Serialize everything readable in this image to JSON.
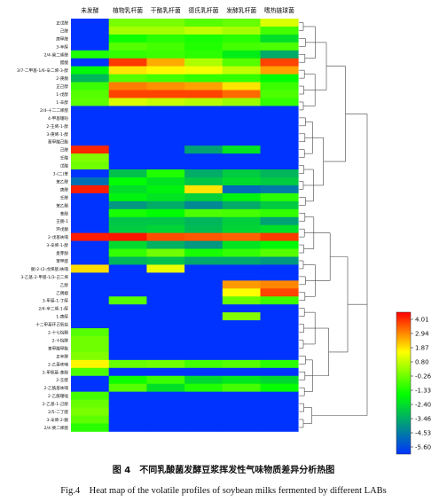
{
  "chart_data": {
    "type": "heatmap",
    "columns": [
      "未发酵",
      "植物乳杆菌",
      "干酪乳杆菌",
      "德氏乳杆菌",
      "发酵乳杆菌",
      "嗜热链球菌"
    ],
    "rows": [
      "正戊醛",
      "己醛",
      "庚甲醛",
      "3-辛醇",
      "2/4-癸二烯醛",
      "醋酸",
      "3/7-二甲基-1/6-辛二烯-3-醇",
      "2-庚酮",
      "正己醇",
      "1-戊醇",
      "1-辛醇",
      "2/4-十二二烯醛",
      "4-甲基噻吩",
      "2-壬烯-1-醇",
      "3-庚烯-1-醇",
      "葵甲酸己酯",
      "己醛",
      "壬酸",
      "戊酸",
      "3-(二)苯",
      "苯乙醛",
      "庚醛",
      "壬醛",
      "苯乙酮",
      "苯酚",
      "壬酮-1",
      "环戊酮",
      "2-戊基呋喃",
      "3-辛烯-1-醇",
      "麦芽酚",
      "苯甲醛",
      "酮-2-(2-戊烯基)呋喃",
      "3-乙基-2-甲基-1/3-己二烯",
      "乙醇",
      "乙偶姻",
      "3-甲基-1-丁醇",
      "2/4-辛二烯-1-醇",
      "1-庚醇",
      "十二甲基环己氧烷",
      "2-十七烷酮",
      "2-十烷醛",
      "苯甲酸甲酯",
      "正辛醛",
      "2-乙基呋喃",
      "2-甲氧基-苯酚",
      "2-壬醛",
      "2-乙酰基呋喃",
      "2-乙酰噻唑",
      "2-乙基-1-己醇",
      "2/5-二丁醛",
      "3-辛烯-2-酮",
      "2/4-癸二烯醛"
    ],
    "values": [
      [
        -5.6,
        -0.2,
        -0.2,
        -0.6,
        -0.4,
        0.9
      ],
      [
        -5.6,
        0.3,
        0.3,
        0.6,
        0.3,
        -0.8
      ],
      [
        -5.6,
        -1.4,
        -1.1,
        -1.3,
        -1.1,
        -2.2
      ],
      [
        -5.6,
        -0.6,
        -0.8,
        -1.2,
        -0.8,
        -0.7
      ],
      [
        -1.2,
        -1.0,
        -0.9,
        -1.1,
        -1.9,
        -3.2
      ],
      [
        -5.6,
        3.4,
        2.2,
        0.4,
        -0.6,
        3.3
      ],
      [
        -1.7,
        1.6,
        1.4,
        1.2,
        0.6,
        2.3
      ],
      [
        -3.0,
        -0.6,
        -0.8,
        -1.0,
        -1.0,
        -1.6
      ],
      [
        -0.9,
        2.7,
        2.5,
        2.3,
        1.6,
        -0.9
      ],
      [
        -0.6,
        3.3,
        3.3,
        3.3,
        2.9,
        -0.7
      ],
      [
        -0.5,
        0.9,
        0.7,
        0.5,
        0.2,
        -1.0
      ],
      [
        -5.6,
        -5.6,
        -5.6,
        -5.6,
        -5.6,
        -5.6
      ],
      [
        -5.6,
        -5.6,
        -5.6,
        -5.6,
        -5.6,
        -5.6
      ],
      [
        -5.6,
        -5.6,
        -5.6,
        -5.6,
        -5.6,
        -5.6
      ],
      [
        -5.6,
        -5.6,
        -5.6,
        -5.6,
        -5.6,
        -5.6
      ],
      [
        -5.6,
        -5.6,
        -5.6,
        -5.6,
        -5.6,
        -5.6
      ],
      [
        3.6,
        -5.6,
        -5.6,
        -3.4,
        -2.1,
        -5.6
      ],
      [
        -0.1,
        -5.6,
        -5.6,
        -5.6,
        -5.6,
        -5.6
      ],
      [
        -0.3,
        -5.6,
        -5.6,
        -5.6,
        -5.6,
        -5.6
      ],
      [
        -5.6,
        -2.8,
        -1.2,
        -3.2,
        -2.6,
        -3.0
      ],
      [
        -4.4,
        -1.6,
        -2.1,
        -2.7,
        -2.3,
        -2.6
      ],
      [
        3.7,
        -2.2,
        -1.8,
        1.6,
        -4.5,
        -4.2
      ],
      [
        -5.6,
        -1.8,
        -2.1,
        -2.5,
        -1.8,
        -1.1
      ],
      [
        -5.6,
        -3.6,
        -3.2,
        -3.9,
        -3.2,
        -2.6
      ],
      [
        -5.6,
        -1.3,
        -1.6,
        -0.7,
        -0.8,
        -1.0
      ],
      [
        -5.6,
        -2.7,
        -2.7,
        -3.0,
        -2.5,
        -3.4
      ],
      [
        -5.6,
        -2.6,
        -2.4,
        -2.9,
        -2.4,
        -2.2
      ],
      [
        3.7,
        3.8,
        3.2,
        3.1,
        3.0,
        3.4
      ],
      [
        -5.6,
        -2.3,
        -3.1,
        -3.6,
        -2.1,
        -1.7
      ],
      [
        -5.6,
        -1.0,
        -0.3,
        -1.3,
        -1.0,
        -0.6
      ],
      [
        -5.6,
        -3.0,
        -2.8,
        -3.3,
        -3.3,
        -3.6
      ],
      [
        1.7,
        -5.6,
        1.1,
        -5.6,
        -5.6,
        -5.6
      ],
      [
        -5.6,
        -5.6,
        -5.6,
        -5.6,
        -5.6,
        -5.6
      ],
      [
        -5.6,
        -5.6,
        -5.6,
        -5.6,
        2.4,
        2.6
      ],
      [
        -5.6,
        -5.6,
        -5.6,
        -5.6,
        1.3,
        3.3
      ],
      [
        -5.6,
        -0.6,
        -5.6,
        -5.6,
        -0.4,
        -0.9
      ],
      [
        -5.6,
        -5.6,
        -5.6,
        -5.6,
        -5.6,
        -5.6
      ],
      [
        -5.6,
        -5.6,
        -5.6,
        -5.6,
        -0.1,
        -5.6
      ],
      [
        -5.6,
        -5.6,
        -5.6,
        -5.6,
        -5.6,
        -5.6
      ],
      [
        -0.6,
        -5.6,
        -5.6,
        -5.6,
        -5.6,
        -5.6
      ],
      [
        -0.3,
        -5.6,
        -5.6,
        -5.6,
        -5.6,
        -5.6
      ],
      [
        -0.3,
        -5.6,
        -5.6,
        -5.6,
        -5.6,
        -5.6
      ],
      [
        -0.1,
        -5.6,
        -5.6,
        -5.6,
        -5.6,
        -5.6
      ],
      [
        1.4,
        -0.4,
        -0.3,
        -0.8,
        -0.6,
        -1.1
      ],
      [
        -0.7,
        -5.6,
        -5.6,
        -5.6,
        -5.6,
        -5.6
      ],
      [
        -5.6,
        -1.4,
        -0.9,
        -2.3,
        -2.0,
        -2.3
      ],
      [
        -5.6,
        -0.6,
        -2.2,
        -1.2,
        -0.8,
        -1.5
      ],
      [
        -0.8,
        -5.6,
        -5.6,
        -5.6,
        -5.6,
        -5.6
      ],
      [
        -0.4,
        -5.6,
        -5.6,
        -5.6,
        -5.6,
        -5.6
      ],
      [
        -0.2,
        -5.6,
        -5.6,
        -5.6,
        -5.6,
        -5.6
      ],
      [
        -0.5,
        -5.6,
        -5.6,
        -5.6,
        -5.6,
        -5.6
      ],
      [
        -1.1,
        -5.6,
        -5.6,
        -5.6,
        -5.6,
        -5.6
      ]
    ],
    "legend_ticks": [
      "4.01",
      "2.94",
      "1.87",
      "0.80",
      "-0.26",
      "-1.33",
      "-2.40",
      "-3.46",
      "-4.53",
      "-5.60"
    ],
    "legend_placement": "right",
    "dendrogram": "rows, right side",
    "colors": [
      "#ff0000",
      "#ff8000",
      "#ffff00",
      "#00ff00",
      "#0033ff"
    ]
  },
  "caption": {
    "cn": "图 4　不同乳酸菌发酵豆浆挥发性气味物质差异分析热图",
    "en": "Fig.4　Heat map of the volatile profiles of soybean milks fermented by different LABs"
  }
}
